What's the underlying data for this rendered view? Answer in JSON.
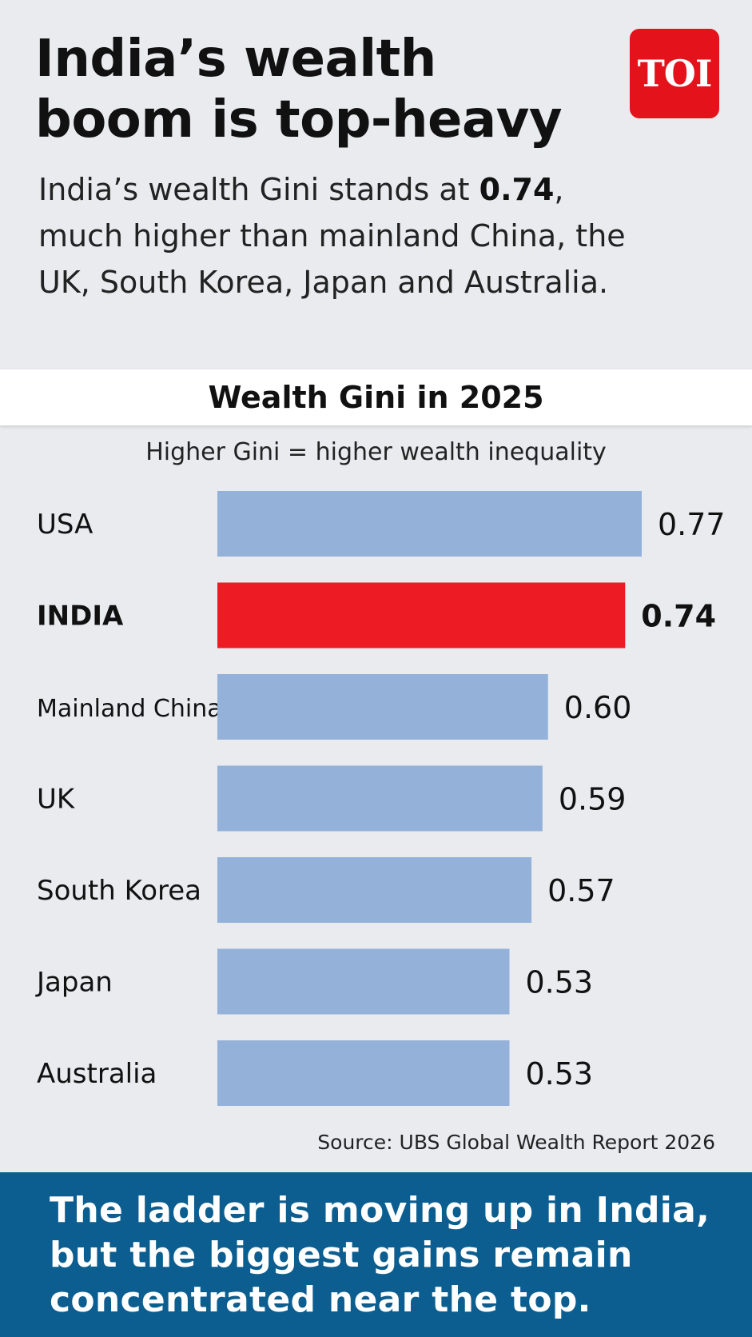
{
  "header": {
    "headline": "India’s wealth boom is top-heavy",
    "subtitle_prefix": "India’s wealth Gini stands at ",
    "subtitle_bold": "0.74",
    "subtitle_suffix": ", much higher than mainland China, the UK, South Korea, Japan and Australia."
  },
  "logo": {
    "text": "TOI",
    "color": "#e3121b"
  },
  "colors": {
    "accent": "#ed1c24",
    "bar": "#94b2d9",
    "footer": "#0b5e8f"
  },
  "chart_data": {
    "type": "bar",
    "orientation": "horizontal",
    "title": "Wealth Gini in 2025",
    "subtitle": "Higher Gini = higher wealth inequality",
    "categories": [
      "USA",
      "INDIA",
      "Mainland China",
      "UK",
      "South Korea",
      "Japan",
      "Australia"
    ],
    "values": [
      0.77,
      0.74,
      0.6,
      0.59,
      0.57,
      0.53,
      0.53
    ],
    "value_labels": [
      "0.77",
      "0.74",
      "0.60",
      "0.59",
      "0.57",
      "0.53",
      "0.53"
    ],
    "highlight": "INDIA",
    "xlim": [
      0,
      0.77
    ],
    "grid": false,
    "legend": "none",
    "source": "Source: UBS Global Wealth Report 2026"
  },
  "footer": {
    "text": "The ladder is moving up in India, but the biggest gains remain concentrated near the top."
  }
}
